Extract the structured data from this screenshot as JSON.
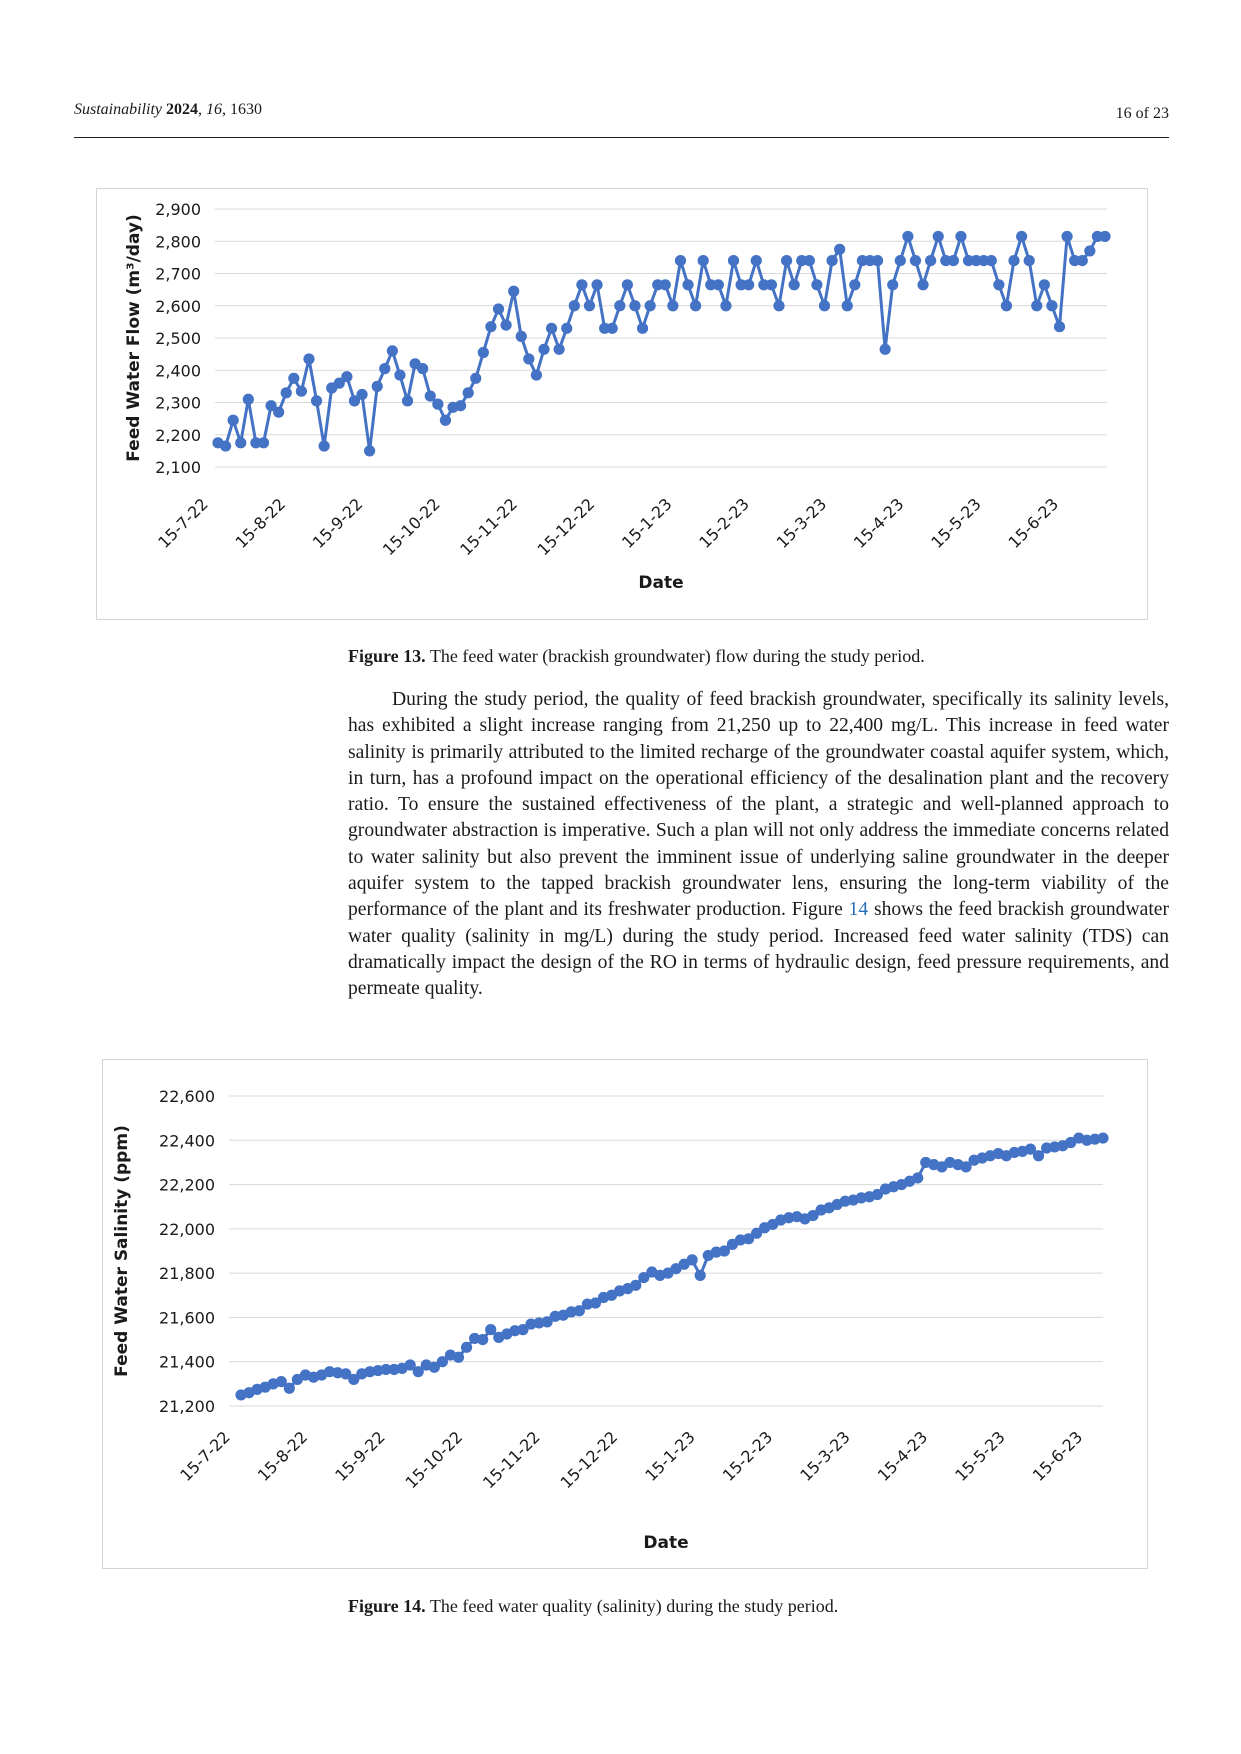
{
  "header": {
    "journal": "Sustainability",
    "year": "2024",
    "volume": "16",
    "article": "1630",
    "page": "16 of 23"
  },
  "figure13": {
    "caption_label": "Figure 13.",
    "caption_text": "The feed water (brackish groundwater) flow during the study period."
  },
  "figure14": {
    "caption_label": "Figure 14.",
    "caption_text": "The feed water quality (salinity) during the study period."
  },
  "paragraph": {
    "before_ref": "During the study period, the quality of feed brackish groundwater, specifically its salinity levels, has exhibited a slight increase ranging from 21,250 up to 22,400 mg/L. This increase in feed water salinity is primarily attributed to the limited recharge of the groundwater coastal aquifer system, which, in turn, has a profound impact on the operational efficiency of the desalination plant and the recovery ratio. To ensure the sustained effectiveness of the plant, a strategic and well-planned approach to groundwater abstraction is imperative. Such a plan will not only address the immediate concerns related to water salinity but also prevent the imminent issue of underlying saline groundwater in the deeper aquifer system to the tapped brackish groundwater lens, ensuring the long-term viability of the performance of the plant and its freshwater production. Figure",
    "ref": "14",
    "after_ref": "shows the feed brackish groundwater water quality (salinity in mg/L) during the study period. Increased feed water salinity (TDS) can dramatically impact the design of the RO in terms of hydraulic design, feed pressure requirements, and permeate quality."
  },
  "chart_data": [
    {
      "type": "line",
      "title": "",
      "xlabel": "Date",
      "ylabel": "Feed Water Flow (m³/day)",
      "ylim": [
        2100,
        2900
      ],
      "yticks": [
        "2,100",
        "2,200",
        "2,300",
        "2,400",
        "2,500",
        "2,600",
        "2,700",
        "2,800",
        "2,900"
      ],
      "x_tick_labels": [
        "15-7-22",
        "15-8-22",
        "15-9-22",
        "15-10-22",
        "15-11-22",
        "15-12-22",
        "15-1-23",
        "15-2-23",
        "15-3-23",
        "15-4-23",
        "15-5-23",
        "15-6-23"
      ],
      "grid": true,
      "marker": "circle",
      "color": "#4472C4",
      "series": [
        {
          "values": [
            2175,
            2165,
            2245,
            2175,
            2310,
            2175,
            2175,
            2290,
            2270,
            2330,
            2375,
            2335,
            2435,
            2305,
            2165,
            2345,
            2360,
            2380,
            2305,
            2325,
            2150,
            2350,
            2405,
            2460,
            2385,
            2305,
            2420,
            2405,
            2320,
            2295,
            2245,
            2285,
            2290,
            2330,
            2375,
            2455,
            2535,
            2590,
            2540,
            2645,
            2505,
            2435,
            2385,
            2465,
            2530,
            2465,
            2530,
            2600,
            2665,
            2600,
            2665,
            2530,
            2530,
            2600,
            2665,
            2600,
            2530,
            2600,
            2665,
            2665,
            2600,
            2740,
            2665,
            2600,
            2740,
            2665,
            2665,
            2600,
            2740,
            2665,
            2665,
            2740,
            2665,
            2665,
            2600,
            2740,
            2665,
            2740,
            2740,
            2665,
            2600,
            2740,
            2775,
            2600,
            2665,
            2740,
            2740,
            2740,
            2465,
            2665,
            2740,
            2815,
            2740,
            2665,
            2740,
            2815,
            2740,
            2740,
            2815,
            2740,
            2740,
            2740,
            2740,
            2665,
            2600,
            2740,
            2815,
            2740,
            2600,
            2665,
            2600,
            2535,
            2815,
            2740,
            2740,
            2770,
            2815,
            2815
          ]
        }
      ]
    },
    {
      "type": "line",
      "title": "",
      "xlabel": "Date",
      "ylabel": "Feed Water Salinity (ppm)",
      "ylim": [
        21200,
        22600
      ],
      "yticks": [
        "21,200",
        "21,400",
        "21,600",
        "21,800",
        "22,000",
        "22,200",
        "22,400",
        "22,600"
      ],
      "x_tick_labels": [
        "15-7-22",
        "15-8-22",
        "15-9-22",
        "15-10-22",
        "15-11-22",
        "15-12-22",
        "15-1-23",
        "15-2-23",
        "15-3-23",
        "15-4-23",
        "15-5-23",
        "15-6-23"
      ],
      "grid": true,
      "marker": "circle",
      "color": "#4472C4",
      "series": [
        {
          "values": [
            21250,
            21260,
            21275,
            21285,
            21300,
            21310,
            21280,
            21320,
            21340,
            21330,
            21340,
            21355,
            21350,
            21345,
            21320,
            21345,
            21355,
            21360,
            21365,
            21365,
            21370,
            21385,
            21355,
            21385,
            21375,
            21400,
            21430,
            21420,
            21465,
            21505,
            21500,
            21545,
            21510,
            21525,
            21540,
            21545,
            21570,
            21575,
            21580,
            21605,
            21610,
            21625,
            21630,
            21660,
            21665,
            21690,
            21700,
            21720,
            21730,
            21745,
            21780,
            21805,
            21790,
            21800,
            21820,
            21840,
            21860,
            21790,
            21880,
            21895,
            21900,
            21930,
            21950,
            21955,
            21980,
            22005,
            22020,
            22040,
            22050,
            22055,
            22045,
            22060,
            22085,
            22095,
            22110,
            22125,
            22130,
            22140,
            22145,
            22155,
            22180,
            22190,
            22200,
            22215,
            22230,
            22300,
            22290,
            22280,
            22300,
            22290,
            22280,
            22310,
            22320,
            22330,
            22340,
            22330,
            22345,
            22350,
            22360,
            22330,
            22365,
            22370,
            22375,
            22390,
            22410,
            22400,
            22405,
            22410
          ]
        }
      ]
    }
  ]
}
